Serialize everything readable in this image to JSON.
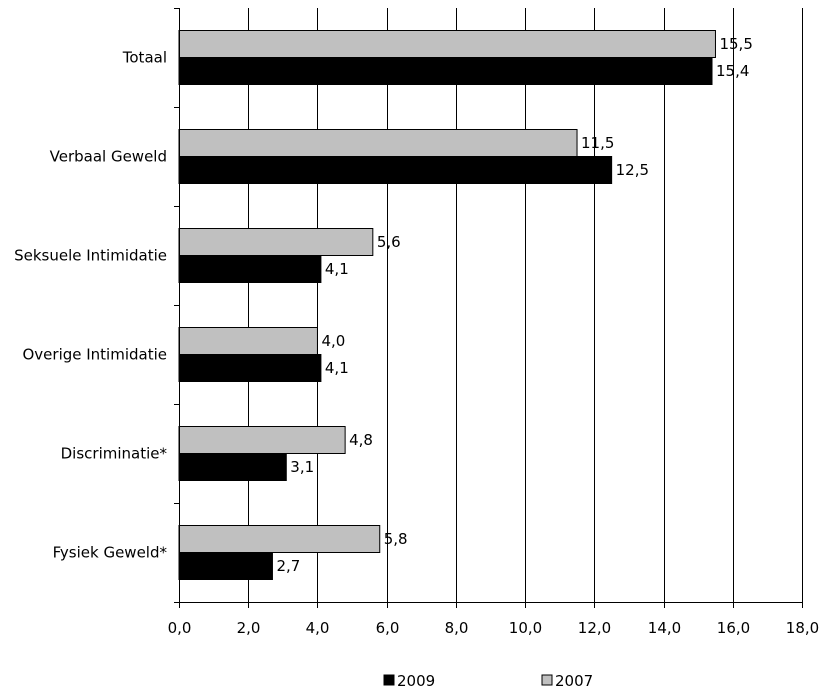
{
  "chart_data": {
    "type": "bar",
    "orientation": "horizontal",
    "categories": [
      "Totaal",
      "Verbaal Geweld",
      "Seksuele Intimidatie",
      "Overige Intimidatie",
      "Discriminatie*",
      "Fysiek Geweld*"
    ],
    "series": [
      {
        "name": "2007",
        "color": "#c0c0c0",
        "values": [
          15.5,
          11.5,
          5.6,
          4.0,
          4.8,
          5.8
        ],
        "value_labels": [
          "15,5",
          "11,5",
          "5,6",
          "4,0",
          "4,8",
          "5,8"
        ]
      },
      {
        "name": "2009",
        "color": "#000000",
        "values": [
          15.4,
          12.5,
          4.1,
          4.1,
          3.1,
          2.7
        ],
        "value_labels": [
          "15,4",
          "12,5",
          "4,1",
          "4,1",
          "3,1",
          "2,7"
        ]
      }
    ],
    "xlim": [
      0,
      18
    ],
    "xticks": [
      0,
      2,
      4,
      6,
      8,
      10,
      12,
      14,
      16,
      18
    ],
    "xtick_labels": [
      "0,0",
      "2,0",
      "4,0",
      "6,0",
      "8,0",
      "10,0",
      "12,0",
      "14,0",
      "16,0",
      "18,0"
    ],
    "grid": "vertical",
    "legend_position": "bottom",
    "legend_order": [
      "2009",
      "2007"
    ],
    "title": "",
    "xlabel": "",
    "ylabel": ""
  }
}
